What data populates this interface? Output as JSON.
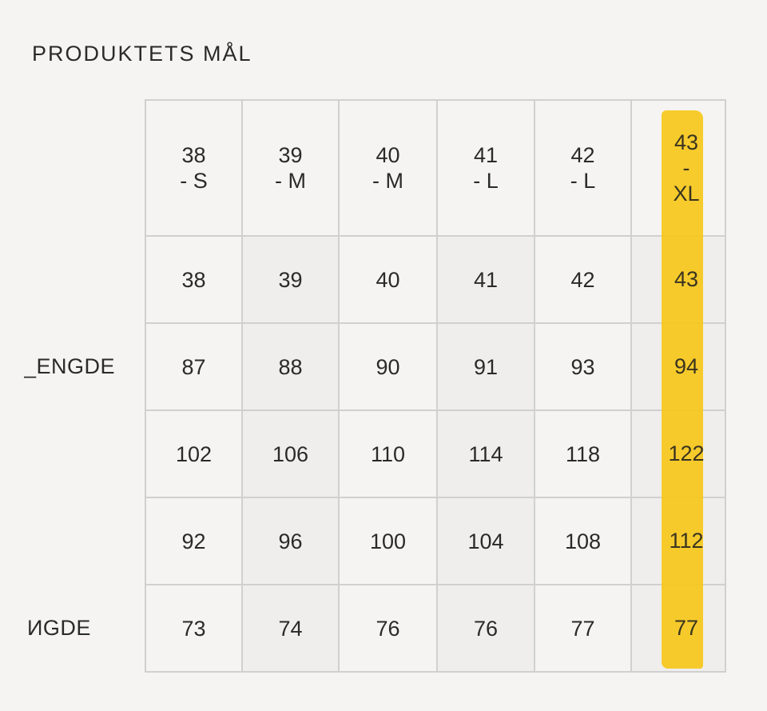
{
  "title": "PRODUKTETS MÅL",
  "row_labels": {
    "row3": "_ENGDE",
    "row6": "ИGDE"
  },
  "table": {
    "headers": [
      {
        "top": "38",
        "bottom": "- S"
      },
      {
        "top": "39",
        "bottom": "- M"
      },
      {
        "top": "40",
        "bottom": "- M"
      },
      {
        "top": "41",
        "bottom": "- L"
      },
      {
        "top": "42",
        "bottom": "- L"
      },
      {
        "top": "43",
        "mid": "-",
        "bottom": "XL"
      }
    ],
    "rows": [
      [
        "38",
        "39",
        "40",
        "41",
        "42",
        "43"
      ],
      [
        "87",
        "88",
        "90",
        "91",
        "93",
        "94"
      ],
      [
        "102",
        "106",
        "110",
        "114",
        "118",
        "122"
      ],
      [
        "92",
        "96",
        "100",
        "104",
        "108",
        "112"
      ],
      [
        "73",
        "74",
        "76",
        "76",
        "77",
        "77"
      ]
    ]
  },
  "highlight_color": "#f6c71a"
}
